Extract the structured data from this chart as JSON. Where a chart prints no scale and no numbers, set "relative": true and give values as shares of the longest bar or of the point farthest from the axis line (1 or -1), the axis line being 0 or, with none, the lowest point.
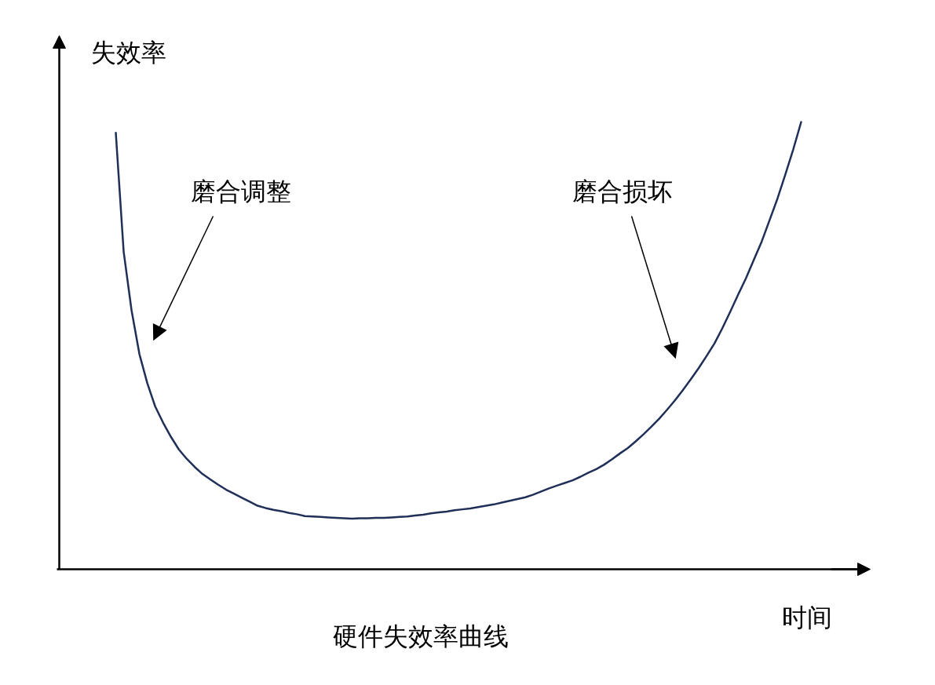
{
  "chart_data": {
    "type": "line",
    "title": "硬件失效率曲线",
    "xlabel": "时间",
    "ylabel": "失效率",
    "annotations": [
      "磨合调整",
      "磨合损坏"
    ],
    "relative": true,
    "line_style": "solid",
    "categories": [
      null,
      null,
      null,
      null,
      null,
      null,
      null,
      null,
      null,
      null,
      null,
      null,
      null,
      null,
      null,
      null,
      null,
      null,
      null,
      null,
      null,
      null,
      null,
      null,
      null,
      null,
      null,
      null,
      null,
      null,
      null,
      null,
      null,
      null,
      null,
      null,
      null,
      null,
      null,
      null,
      null,
      null,
      null,
      null,
      null,
      null,
      null,
      null,
      null,
      null,
      null,
      null,
      null,
      null,
      null,
      null,
      null,
      null,
      null,
      null,
      null,
      null,
      null,
      null,
      null,
      null,
      null,
      null,
      null,
      null,
      null,
      null,
      null,
      null,
      null,
      null,
      null,
      null,
      null,
      null,
      null,
      null,
      null,
      null,
      null,
      null,
      null,
      null
    ],
    "series": [
      {
        "color": "#1f2f57",
        "values": [
          0.976,
          0.71,
          0.579,
          0.481,
          0.416,
          0.364,
          0.328,
          0.296,
          0.268,
          0.247,
          0.229,
          0.213,
          0.201,
          0.189,
          0.178,
          0.169,
          0.16,
          0.151,
          0.142,
          0.137,
          0.133,
          0.13,
          0.126,
          0.123,
          0.119,
          0.118,
          0.117,
          0.116,
          0.115,
          0.114,
          0.113,
          0.114,
          0.114,
          0.115,
          0.115,
          0.116,
          0.117,
          0.118,
          0.12,
          0.122,
          0.125,
          0.127,
          0.129,
          0.132,
          0.134,
          0.136,
          0.139,
          0.142,
          0.145,
          0.149,
          0.153,
          0.157,
          0.161,
          0.167,
          0.174,
          0.181,
          0.187,
          0.193,
          0.199,
          0.207,
          0.216,
          0.224,
          0.234,
          0.246,
          0.259,
          0.271,
          0.286,
          0.302,
          0.319,
          0.337,
          0.357,
          0.378,
          0.401,
          0.425,
          0.45,
          0.477,
          0.505,
          0.539,
          0.576,
          0.614,
          0.651,
          0.692,
          0.733,
          0.781,
          0.829,
          0.883,
          0.939,
          1.0
        ]
      }
    ]
  }
}
